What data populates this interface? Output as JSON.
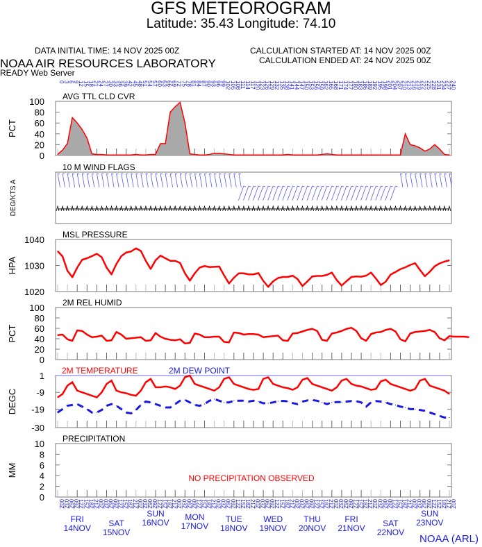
{
  "header": {
    "title": "GFS METEOROGRAM",
    "subtitle": "Latitude: 35.43 Longitude:  74.10",
    "data_initial_time": "DATA INITIAL TIME: 14 NOV 2025 00Z",
    "calc_started": "CALCULATION STARTED AT: 14 NOV 2025 00Z",
    "calc_ended": "CALCULATION ENDED AT: 24 NOV 2025 00Z",
    "lab": "NOAA AIR RESOURCES LABORATORY",
    "server": "READY Web Server",
    "footer": "NOAA (ARL)"
  },
  "colors": {
    "red": "#ff0000",
    "blue": "#1a1adf",
    "fill": "#a9a9a9",
    "wind": "#5555ee"
  },
  "chart_data": [
    {
      "type": "area",
      "title": "AVG TTL CLD CVR",
      "ylabel": "PCT",
      "ylim": [
        0,
        100
      ],
      "yticks": [
        "100",
        "80",
        "60",
        "40",
        "20",
        "0"
      ],
      "x_hours": [
        0,
        3,
        6,
        9,
        12,
        15,
        18,
        21,
        24,
        27,
        30,
        33,
        36,
        39,
        42,
        45,
        48,
        51,
        54,
        57,
        60,
        63,
        66,
        69,
        72,
        75,
        78,
        81,
        84,
        87,
        90,
        93,
        96,
        99,
        102,
        105,
        108,
        111,
        114,
        117,
        120,
        123,
        126,
        129,
        132,
        135,
        138,
        141,
        144,
        147,
        150,
        153,
        156,
        159,
        162,
        165,
        168,
        171,
        174,
        177,
        180,
        183,
        186,
        189,
        192,
        195,
        198,
        201,
        204,
        207,
        210,
        213,
        216,
        219,
        222,
        225,
        228,
        231,
        234,
        237,
        240
      ],
      "values": [
        2,
        10,
        22,
        70,
        60,
        48,
        32,
        3,
        2,
        2,
        1,
        1,
        1,
        1,
        1,
        1,
        2,
        1,
        1,
        2,
        2,
        22,
        22,
        80,
        90,
        98,
        60,
        3,
        2,
        1,
        1,
        2,
        4,
        4,
        3,
        2,
        1,
        1,
        1,
        1,
        1,
        1,
        1,
        1,
        1,
        1,
        1,
        2,
        1,
        1,
        1,
        1,
        1,
        1,
        2,
        3,
        2,
        1,
        1,
        1,
        1,
        1,
        1,
        1,
        1,
        1,
        1,
        1,
        1,
        1,
        1,
        40,
        20,
        18,
        14,
        8,
        12,
        20,
        12,
        2,
        1
      ]
    },
    {
      "type": "wind",
      "title": "10 M  WIND FLAGS",
      "ylabel": "DEG/KTS A"
    },
    {
      "type": "line",
      "title": "MSL PRESSURE",
      "ylabel": "HPA",
      "ylim": [
        1020,
        1040
      ],
      "yticks": [
        "1040",
        "1030",
        "1020"
      ],
      "values": [
        1035.5,
        1033.5,
        1028,
        1025.5,
        1029.2,
        1032.2,
        1032.8,
        1033.6,
        1034.5,
        1033.2,
        1029.2,
        1026.6,
        1030.6,
        1033.6,
        1035,
        1035.4,
        1036.6,
        1035.6,
        1031.8,
        1028.7,
        1032,
        1033.8,
        1032.8,
        1031.8,
        1031.8,
        1031,
        1027,
        1024.2,
        1027,
        1029.2,
        1029.8,
        1029.4,
        1029.5,
        1029.6,
        1026.2,
        1023.1,
        1025.3,
        1027,
        1027,
        1026.6,
        1026.6,
        1027.1,
        1024.1,
        1021.8,
        1023.9,
        1025.2,
        1025.6,
        1025.6,
        1026.1,
        1024.8,
        1022.1,
        1023.9,
        1025.8,
        1026,
        1026,
        1026.4,
        1027.3,
        1024.4,
        1022.3,
        1024,
        1025.6,
        1025.8,
        1025.7,
        1026.1,
        1027.3,
        1025,
        1022.5,
        1023.8,
        1026.5,
        1027.5,
        1028.6,
        1029.3,
        1030.2,
        1030.9,
        1028.3,
        1025.9,
        1027.6,
        1029.7,
        1030.8,
        1031.5,
        1032
      ]
    },
    {
      "type": "line",
      "title": "2M REL HUMID",
      "ylabel": "PCT",
      "ylim": [
        0,
        100
      ],
      "yticks": [
        "100",
        "80",
        "60",
        "40",
        "20",
        "0"
      ],
      "values": [
        47,
        48,
        39,
        36,
        56,
        55,
        48,
        43,
        44,
        46,
        36,
        37,
        53,
        48,
        40,
        41,
        42,
        43,
        36,
        37,
        51,
        44,
        40,
        38,
        37,
        39,
        31,
        32,
        50,
        48,
        43,
        43,
        44,
        44,
        34,
        33,
        52,
        51,
        48,
        49,
        49,
        48,
        43,
        44,
        45,
        46,
        37,
        36,
        50,
        51,
        54,
        57,
        59,
        55,
        38,
        36,
        50,
        52,
        55,
        59,
        61,
        55,
        41,
        36,
        49,
        52,
        53,
        57,
        59,
        54,
        39,
        35,
        50,
        53,
        54,
        55,
        57,
        53,
        41,
        37,
        45,
        44,
        44,
        44,
        43
      ]
    },
    {
      "type": "line",
      "title": "2M TEMPERATURE",
      "title2": "2M   DEW POINT",
      "ylabel": "DEGC",
      "ylim": [
        -30,
        1
      ],
      "yticks": [
        "1",
        "-9",
        "-19",
        "-30"
      ],
      "series": [
        {
          "name": "2M TEMPERATURE",
          "values": [
            -12,
            -10,
            -5,
            -3,
            -8,
            -9,
            -10,
            -11,
            -12,
            -9,
            -4,
            -2,
            -8,
            -9,
            -9.5,
            -10.5,
            -11,
            -8,
            -3,
            -1,
            -6,
            -6,
            -5.5,
            -6,
            -7,
            -5,
            0,
            1,
            -4,
            -5,
            -6,
            -7,
            -8,
            -6,
            -1,
            0,
            -4,
            -5,
            -6,
            -7,
            -7.5,
            -7,
            -1,
            0,
            -4,
            -5,
            -6,
            -6.5,
            -7.5,
            -6,
            -1.5,
            -0.5,
            -4,
            -5,
            -6,
            -7,
            -8,
            -6,
            -2,
            -1,
            -4,
            -5,
            -5.5,
            -6.5,
            -7.5,
            -7,
            -2.5,
            -1.5,
            -4,
            -5,
            -6,
            -7,
            -8,
            -7,
            -2,
            -1,
            -5,
            -6,
            -7,
            -8,
            -10
          ]
        },
        {
          "name": "2M DEW POINT",
          "values": [
            -21,
            -19,
            -17,
            -16.5,
            -16,
            -17.5,
            -19,
            -21,
            -21,
            -19.5,
            -17,
            -16,
            -17,
            -19,
            -21,
            -21.5,
            -19.5,
            -16.5,
            -14.5,
            -15,
            -16,
            -17,
            -18,
            -18,
            -16,
            -14,
            -13.5,
            -15,
            -16.5,
            -17,
            -16,
            -14,
            -13,
            -14,
            -15,
            -15,
            -14,
            -14,
            -14,
            -14.5,
            -14,
            -14.5,
            -15.5,
            -15.5,
            -15,
            -14.3,
            -14.1,
            -14.4,
            -15.4,
            -16,
            -14.5,
            -13.8,
            -13.6,
            -14,
            -15,
            -16,
            -15,
            -14.8,
            -14.8,
            -14.5,
            -14.2,
            -14.3,
            -15,
            -17.5,
            -15,
            -14.2,
            -14.5,
            -15,
            -16,
            -16.5,
            -17.5,
            -18,
            -19,
            -19,
            -19.5,
            -20,
            -21,
            -22,
            -23,
            -24,
            -24
          ]
        }
      ]
    },
    {
      "type": "line",
      "title": "PRECIPITATION",
      "ylabel": "MM",
      "ylim": [
        0,
        10
      ],
      "yticks": [
        "10",
        "8",
        "6",
        "4",
        "2",
        "0"
      ],
      "annotation": "NO PRECIPITATION OBSERVED"
    }
  ],
  "x_axis": {
    "top_hours": [
      "0",
      "3",
      "6",
      "9",
      "12",
      "15",
      "18",
      "21",
      "24",
      "27",
      "30",
      "33",
      "36",
      "39",
      "42",
      "45",
      "48",
      "51",
      "54",
      "57",
      "60",
      "63",
      "66",
      "69",
      "72",
      "75",
      "78",
      "81",
      "84",
      "87",
      "90",
      "93",
      "96",
      "99",
      "102",
      "105",
      "108",
      "111",
      "114",
      "117",
      "120",
      "123",
      "126",
      "129",
      "132",
      "135",
      "138",
      "141",
      "144",
      "147",
      "150",
      "153",
      "156",
      "159",
      "162",
      "165",
      "168",
      "171",
      "174",
      "177",
      "180",
      "183",
      "186",
      "189",
      "192",
      "195",
      "198",
      "201",
      "204",
      "207",
      "210",
      "213",
      "216",
      "219",
      "222",
      "225",
      "228",
      "231",
      "234",
      "237",
      "240"
    ],
    "bottom_times": [
      "00Z",
      "03Z",
      "06Z",
      "09Z",
      "12Z",
      "15Z",
      "18Z",
      "21Z"
    ],
    "days": [
      {
        "dow": "FRI",
        "date": "14NOV"
      },
      {
        "dow": "SAT",
        "date": "15NOV"
      },
      {
        "dow": "SUN",
        "date": "16NOV"
      },
      {
        "dow": "MON",
        "date": "17NOV"
      },
      {
        "dow": "TUE",
        "date": "18NOV"
      },
      {
        "dow": "WED",
        "date": "19NOV"
      },
      {
        "dow": "THU",
        "date": "20NOV"
      },
      {
        "dow": "FRI",
        "date": "21NOV"
      },
      {
        "dow": "SAT",
        "date": "22NOV"
      },
      {
        "dow": "SUN",
        "date": "23NOV"
      }
    ]
  }
}
